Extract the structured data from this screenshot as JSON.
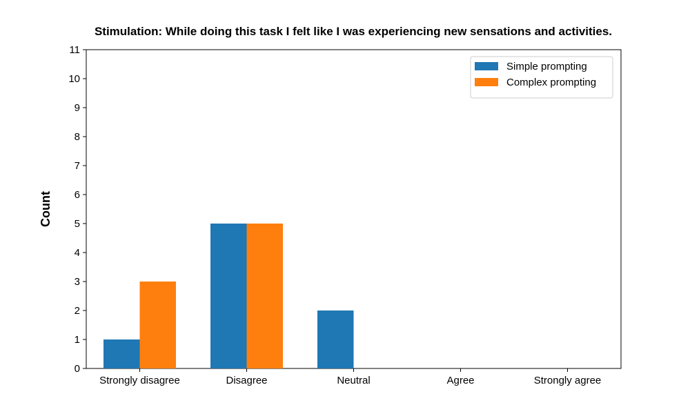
{
  "chart_data": {
    "type": "bar",
    "title": "Stimulation: While doing this task I felt like I was experiencing new sensations and activities.",
    "xlabel": "",
    "ylabel": "Count",
    "categories": [
      "Strongly disagree",
      "Disagree",
      "Neutral",
      "Agree",
      "Strongly agree"
    ],
    "series": [
      {
        "name": "Simple prompting",
        "values": [
          1,
          5,
          2,
          0,
          0
        ],
        "color": "#1f77b4"
      },
      {
        "name": "Complex prompting",
        "values": [
          3,
          5,
          0,
          0,
          0
        ],
        "color": "#ff7f0e"
      }
    ],
    "ylim": [
      0,
      11
    ],
    "yticks": [
      0,
      1,
      2,
      3,
      4,
      5,
      6,
      7,
      8,
      9,
      10,
      11
    ],
    "grid": false,
    "legend_position": "top-right"
  }
}
